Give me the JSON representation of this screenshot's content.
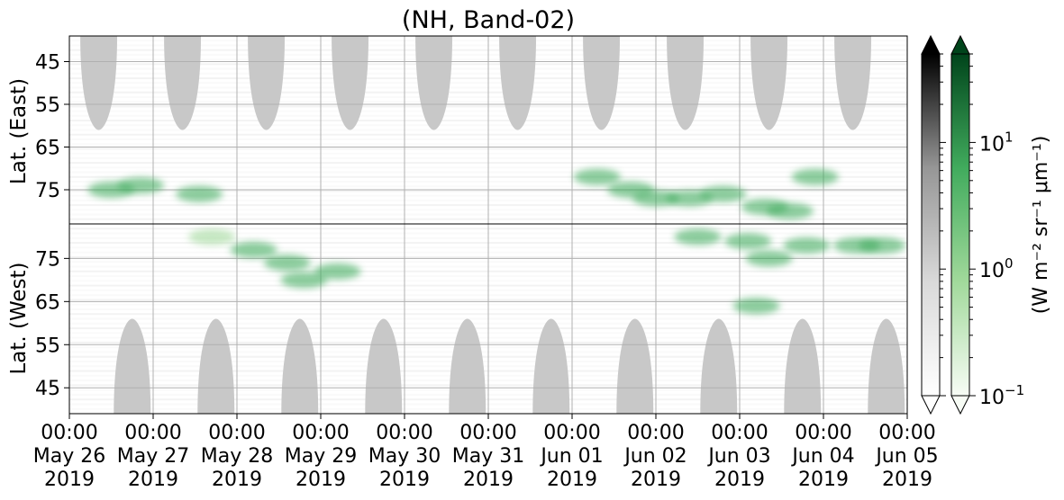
{
  "chart_data": {
    "type": "heatmap",
    "title": "(NH, Band-02)",
    "panels": [
      {
        "name": "east",
        "ylabel": "Lat. (East)",
        "yticks": [
          "45",
          "55",
          "65",
          "75"
        ],
        "ylim": [
          39,
          83
        ],
        "ytick_values": [
          45,
          55,
          65,
          75
        ],
        "orientation": "down"
      },
      {
        "name": "west",
        "ylabel": "Lat. (West)",
        "yticks": [
          "75",
          "65",
          "55",
          "45"
        ],
        "ylim": [
          39,
          83
        ],
        "ytick_values": [
          75,
          65,
          55,
          45
        ],
        "orientation": "up"
      }
    ],
    "xticks": [
      {
        "time": "00:00",
        "date": "May 26",
        "year": "2019"
      },
      {
        "time": "00:00",
        "date": "May 27",
        "year": "2019"
      },
      {
        "time": "00:00",
        "date": "May 28",
        "year": "2019"
      },
      {
        "time": "00:00",
        "date": "May 29",
        "year": "2019"
      },
      {
        "time": "00:00",
        "date": "May 30",
        "year": "2019"
      },
      {
        "time": "00:00",
        "date": "May 31",
        "year": "2019"
      },
      {
        "time": "00:00",
        "date": "Jun 01",
        "year": "2019"
      },
      {
        "time": "00:00",
        "date": "Jun 02",
        "year": "2019"
      },
      {
        "time": "00:00",
        "date": "Jun 03",
        "year": "2019"
      },
      {
        "time": "00:00",
        "date": "Jun 04",
        "year": "2019"
      },
      {
        "time": "00:00",
        "date": "Jun 05",
        "year": "2019"
      }
    ],
    "xlim": [
      "2019-05-26T00:00",
      "2019-06-05T00:00"
    ],
    "grid": true,
    "daylight_mask": {
      "color": "#c8c8c8",
      "east_centers_day": [
        0.35,
        1.35,
        2.35,
        3.35,
        4.35,
        5.35,
        6.35,
        7.35,
        8.35,
        9.35
      ],
      "east_min_lat": 61,
      "west_centers_day": [
        0.75,
        1.75,
        2.75,
        3.75,
        4.75,
        5.75,
        6.75,
        7.75,
        8.75,
        9.75
      ],
      "west_min_lat": 61,
      "halfwidth_day": 0.22
    },
    "green_features": [
      {
        "panel": "east",
        "day": 0.5,
        "lat": 75,
        "value": 2
      },
      {
        "panel": "east",
        "day": 0.85,
        "lat": 74,
        "value": 3
      },
      {
        "panel": "east",
        "day": 1.55,
        "lat": 76,
        "value": 2
      },
      {
        "panel": "east",
        "day": 6.3,
        "lat": 72,
        "value": 3
      },
      {
        "panel": "east",
        "day": 6.7,
        "lat": 75,
        "value": 5
      },
      {
        "panel": "east",
        "day": 7.0,
        "lat": 77,
        "value": 8
      },
      {
        "panel": "east",
        "day": 7.4,
        "lat": 77,
        "value": 5
      },
      {
        "panel": "east",
        "day": 7.8,
        "lat": 76,
        "value": 6
      },
      {
        "panel": "east",
        "day": 8.3,
        "lat": 79,
        "value": 4
      },
      {
        "panel": "east",
        "day": 8.6,
        "lat": 80,
        "value": 4
      },
      {
        "panel": "east",
        "day": 8.9,
        "lat": 72,
        "value": 3
      },
      {
        "panel": "west",
        "day": 1.7,
        "lat": 80,
        "value": 1.5
      },
      {
        "panel": "west",
        "day": 2.2,
        "lat": 77,
        "value": 2
      },
      {
        "panel": "west",
        "day": 2.6,
        "lat": 74,
        "value": 2
      },
      {
        "panel": "west",
        "day": 2.8,
        "lat": 70,
        "value": 3
      },
      {
        "panel": "west",
        "day": 3.2,
        "lat": 72,
        "value": 3
      },
      {
        "panel": "west",
        "day": 7.5,
        "lat": 80,
        "value": 3
      },
      {
        "panel": "west",
        "day": 8.1,
        "lat": 79,
        "value": 4
      },
      {
        "panel": "west",
        "day": 8.35,
        "lat": 75,
        "value": 4
      },
      {
        "panel": "west",
        "day": 8.2,
        "lat": 64,
        "value": 3
      },
      {
        "panel": "west",
        "day": 8.8,
        "lat": 78,
        "value": 4
      },
      {
        "panel": "west",
        "day": 9.4,
        "lat": 78,
        "value": 3
      },
      {
        "panel": "west",
        "day": 9.7,
        "lat": 78,
        "value": 2
      }
    ],
    "colorbars": [
      {
        "name": "gray",
        "colors": [
          "#ffffff",
          "#d9d9d9",
          "#969696",
          "#000000"
        ],
        "extend": "both"
      },
      {
        "name": "green",
        "colors": [
          "#f7fcf5",
          "#a1d99b",
          "#41ab5d",
          "#00441b"
        ],
        "extend": "both"
      }
    ],
    "colorbar_scale": "log",
    "colorbar_range": [
      0.1,
      50
    ],
    "colorbar_ticks": [
      {
        "base": "10",
        "exp": "1",
        "value": 10
      },
      {
        "base": "10",
        "exp": "0",
        "value": 1
      },
      {
        "base": "10",
        "exp": "−1",
        "value": 0.1
      }
    ],
    "colorbar_label": "(W m⁻² sr⁻¹ μm⁻¹)"
  }
}
